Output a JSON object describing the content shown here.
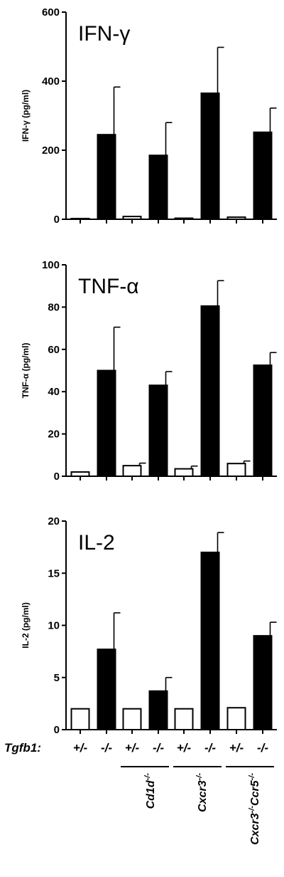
{
  "chart_data": [
    {
      "type": "bar",
      "title": "IFN-γ",
      "ylabel": "IFN-γ (pg/ml)",
      "ylim": [
        0,
        600
      ],
      "yticks": [
        "0",
        "200",
        "400",
        "600"
      ],
      "categories": [
        "+/-",
        "-/-",
        "+/-",
        "-/-",
        "+/-",
        "-/-",
        "+/-",
        "-/-"
      ],
      "values": [
        2,
        245,
        8,
        185,
        3,
        365,
        6,
        252
      ],
      "errors": [
        0,
        138,
        0,
        95,
        0,
        133,
        0,
        70
      ],
      "fills": [
        "white",
        "black",
        "white",
        "black",
        "white",
        "black",
        "white",
        "black"
      ]
    },
    {
      "type": "bar",
      "title": "TNF-α",
      "ylabel": "TNF-α (pg/ml)",
      "ylim": [
        0,
        100
      ],
      "yticks": [
        "0",
        "20",
        "40",
        "60",
        "80",
        "100"
      ],
      "categories": [
        "+/-",
        "-/-",
        "+/-",
        "-/-",
        "+/-",
        "-/-",
        "+/-",
        "-/-"
      ],
      "values": [
        2,
        50,
        5,
        43,
        3.5,
        80.5,
        6,
        52.5
      ],
      "errors": [
        0,
        20.5,
        1.2,
        6.5,
        1.3,
        12,
        1.2,
        6
      ],
      "fills": [
        "white",
        "black",
        "white",
        "black",
        "white",
        "black",
        "white",
        "black"
      ]
    },
    {
      "type": "bar",
      "title": "IL-2",
      "ylabel": "IL-2 (pg/ml)",
      "ylim": [
        0,
        20
      ],
      "yticks": [
        "0",
        "5",
        "10",
        "15",
        "20"
      ],
      "categories": [
        "+/-",
        "-/-",
        "+/-",
        "-/-",
        "+/-",
        "-/-",
        "+/-",
        "-/-"
      ],
      "values": [
        2,
        7.7,
        2,
        3.7,
        2,
        17,
        2.1,
        9
      ],
      "errors": [
        0,
        3.5,
        0,
        1.3,
        0,
        1.9,
        0,
        1.3
      ],
      "fills": [
        "white",
        "black",
        "white",
        "black",
        "white",
        "black",
        "white",
        "black"
      ]
    }
  ],
  "x_axis": {
    "genotype_label": "Tgfb1:",
    "group_labels": [
      "Cd1d-/-",
      "Cxcr3-/-",
      "Cxcr3-/-Ccr5-/-"
    ]
  },
  "colors": {
    "black_bar": "#000000",
    "white_bar": "#ffffff",
    "axis": "#000000"
  }
}
